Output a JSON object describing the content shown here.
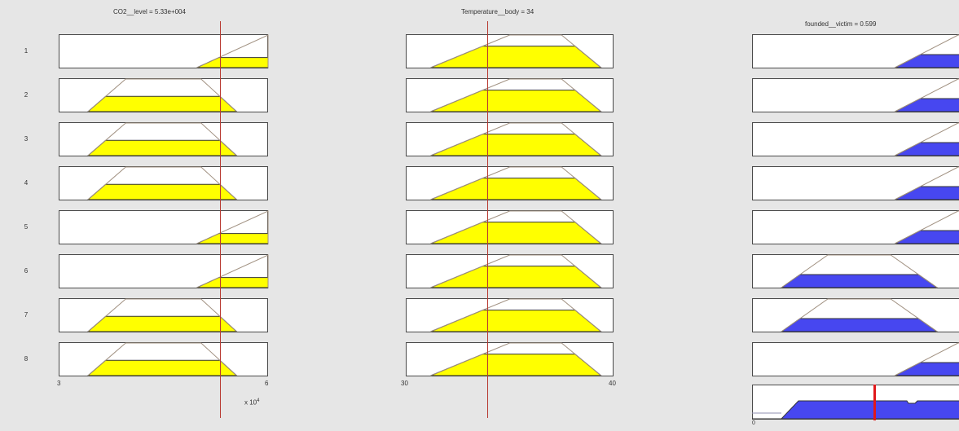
{
  "inputs": [
    {
      "title": "CO2__level = 5.33e+004",
      "tick_min": "3",
      "tick_max": "6",
      "scale_note": "x 10",
      "scale_exp": "4",
      "value": 53300,
      "range": [
        30000,
        60000
      ]
    },
    {
      "title": "Temperature__body = 34",
      "tick_min": "30",
      "tick_max": "40",
      "value": 34,
      "range": [
        30,
        40
      ]
    }
  ],
  "output": {
    "title": "founded__victim = 0.599",
    "tick_min": "0",
    "value": 0.599,
    "range": [
      0,
      1
    ]
  },
  "colors": {
    "input_fill": "#ffff00",
    "output_fill": "#4747f0",
    "crosshair": "#b83a32",
    "output_marker": "#e0181a"
  },
  "rules": [
    "1",
    "2",
    "3",
    "4",
    "5",
    "6",
    "7",
    "8"
  ]
}
